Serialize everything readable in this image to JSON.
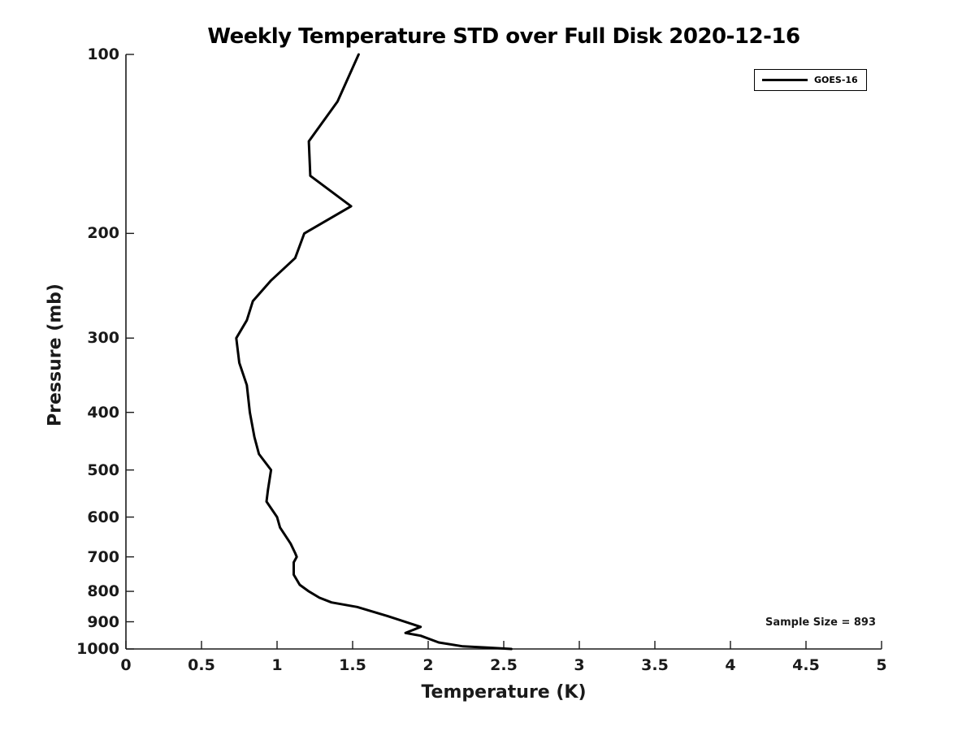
{
  "chart_data": {
    "type": "line",
    "title": "Weekly Temperature STD over Full Disk 2020-12-16",
    "xlabel": "Temperature (K)",
    "ylabel": "Pressure (mb)",
    "xlim": [
      0,
      5
    ],
    "ylim": [
      100,
      1000
    ],
    "yscale": "log",
    "y_axis_inverted_pressure": true,
    "grid": "off",
    "axis_color": "#1a1a1a",
    "xticks": [
      0,
      0.5,
      1,
      1.5,
      2,
      2.5,
      3,
      3.5,
      4,
      4.5,
      5
    ],
    "xtick_labels": [
      "0",
      "0.5",
      "1",
      "1.5",
      "2",
      "2.5",
      "3",
      "3.5",
      "4",
      "4.5",
      "5"
    ],
    "yticks": [
      100,
      200,
      300,
      400,
      500,
      600,
      700,
      800,
      900,
      1000
    ],
    "ytick_labels": [
      "100",
      "200",
      "300",
      "400",
      "500",
      "600",
      "700",
      "800",
      "900",
      "1000"
    ],
    "legend": {
      "position": "upper-right",
      "entries": [
        {
          "label": "GOES-16",
          "color": "#000000",
          "line_width": 3
        }
      ]
    },
    "annotation": "Sample Size = 893",
    "series": [
      {
        "name": "GOES-16",
        "color": "#000000",
        "line_width": 3,
        "points_temperature_K_vs_pressure_mb": [
          [
            1.54,
            100
          ],
          [
            1.4,
            120
          ],
          [
            1.21,
            140
          ],
          [
            1.22,
            160
          ],
          [
            1.49,
            180
          ],
          [
            1.18,
            200
          ],
          [
            1.12,
            220
          ],
          [
            0.96,
            240
          ],
          [
            0.84,
            260
          ],
          [
            0.8,
            280
          ],
          [
            0.73,
            300
          ],
          [
            0.75,
            330
          ],
          [
            0.8,
            360
          ],
          [
            0.82,
            400
          ],
          [
            0.85,
            440
          ],
          [
            0.88,
            470
          ],
          [
            0.96,
            500
          ],
          [
            0.94,
            540
          ],
          [
            0.93,
            565
          ],
          [
            1.0,
            600
          ],
          [
            1.02,
            625
          ],
          [
            1.09,
            665
          ],
          [
            1.12,
            690
          ],
          [
            1.13,
            700
          ],
          [
            1.11,
            715
          ],
          [
            1.11,
            750
          ],
          [
            1.15,
            780
          ],
          [
            1.21,
            800
          ],
          [
            1.28,
            820
          ],
          [
            1.36,
            835
          ],
          [
            1.53,
            850
          ],
          [
            1.73,
            880
          ],
          [
            1.95,
            918
          ],
          [
            1.85,
            940
          ],
          [
            1.95,
            950
          ],
          [
            2.07,
            975
          ],
          [
            2.23,
            990
          ],
          [
            2.4,
            995
          ],
          [
            2.55,
            1000
          ]
        ]
      }
    ]
  }
}
